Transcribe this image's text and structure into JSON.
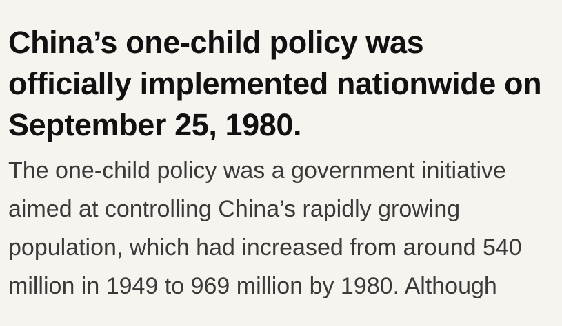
{
  "article": {
    "headline_lines": [
      "China’s one-child policy was",
      "officially implemented nationwide on",
      "September 25, 1980."
    ],
    "body_lines": [
      "The one-child policy was a government initiative",
      "aimed at controlling China’s rapidly growing",
      "population, which had increased from around 540",
      "million in 1949 to 969 million by 1980. Although"
    ]
  },
  "colors": {
    "background": "#f7f3ef",
    "headline": "#111111",
    "body": "#3a3a3a"
  }
}
